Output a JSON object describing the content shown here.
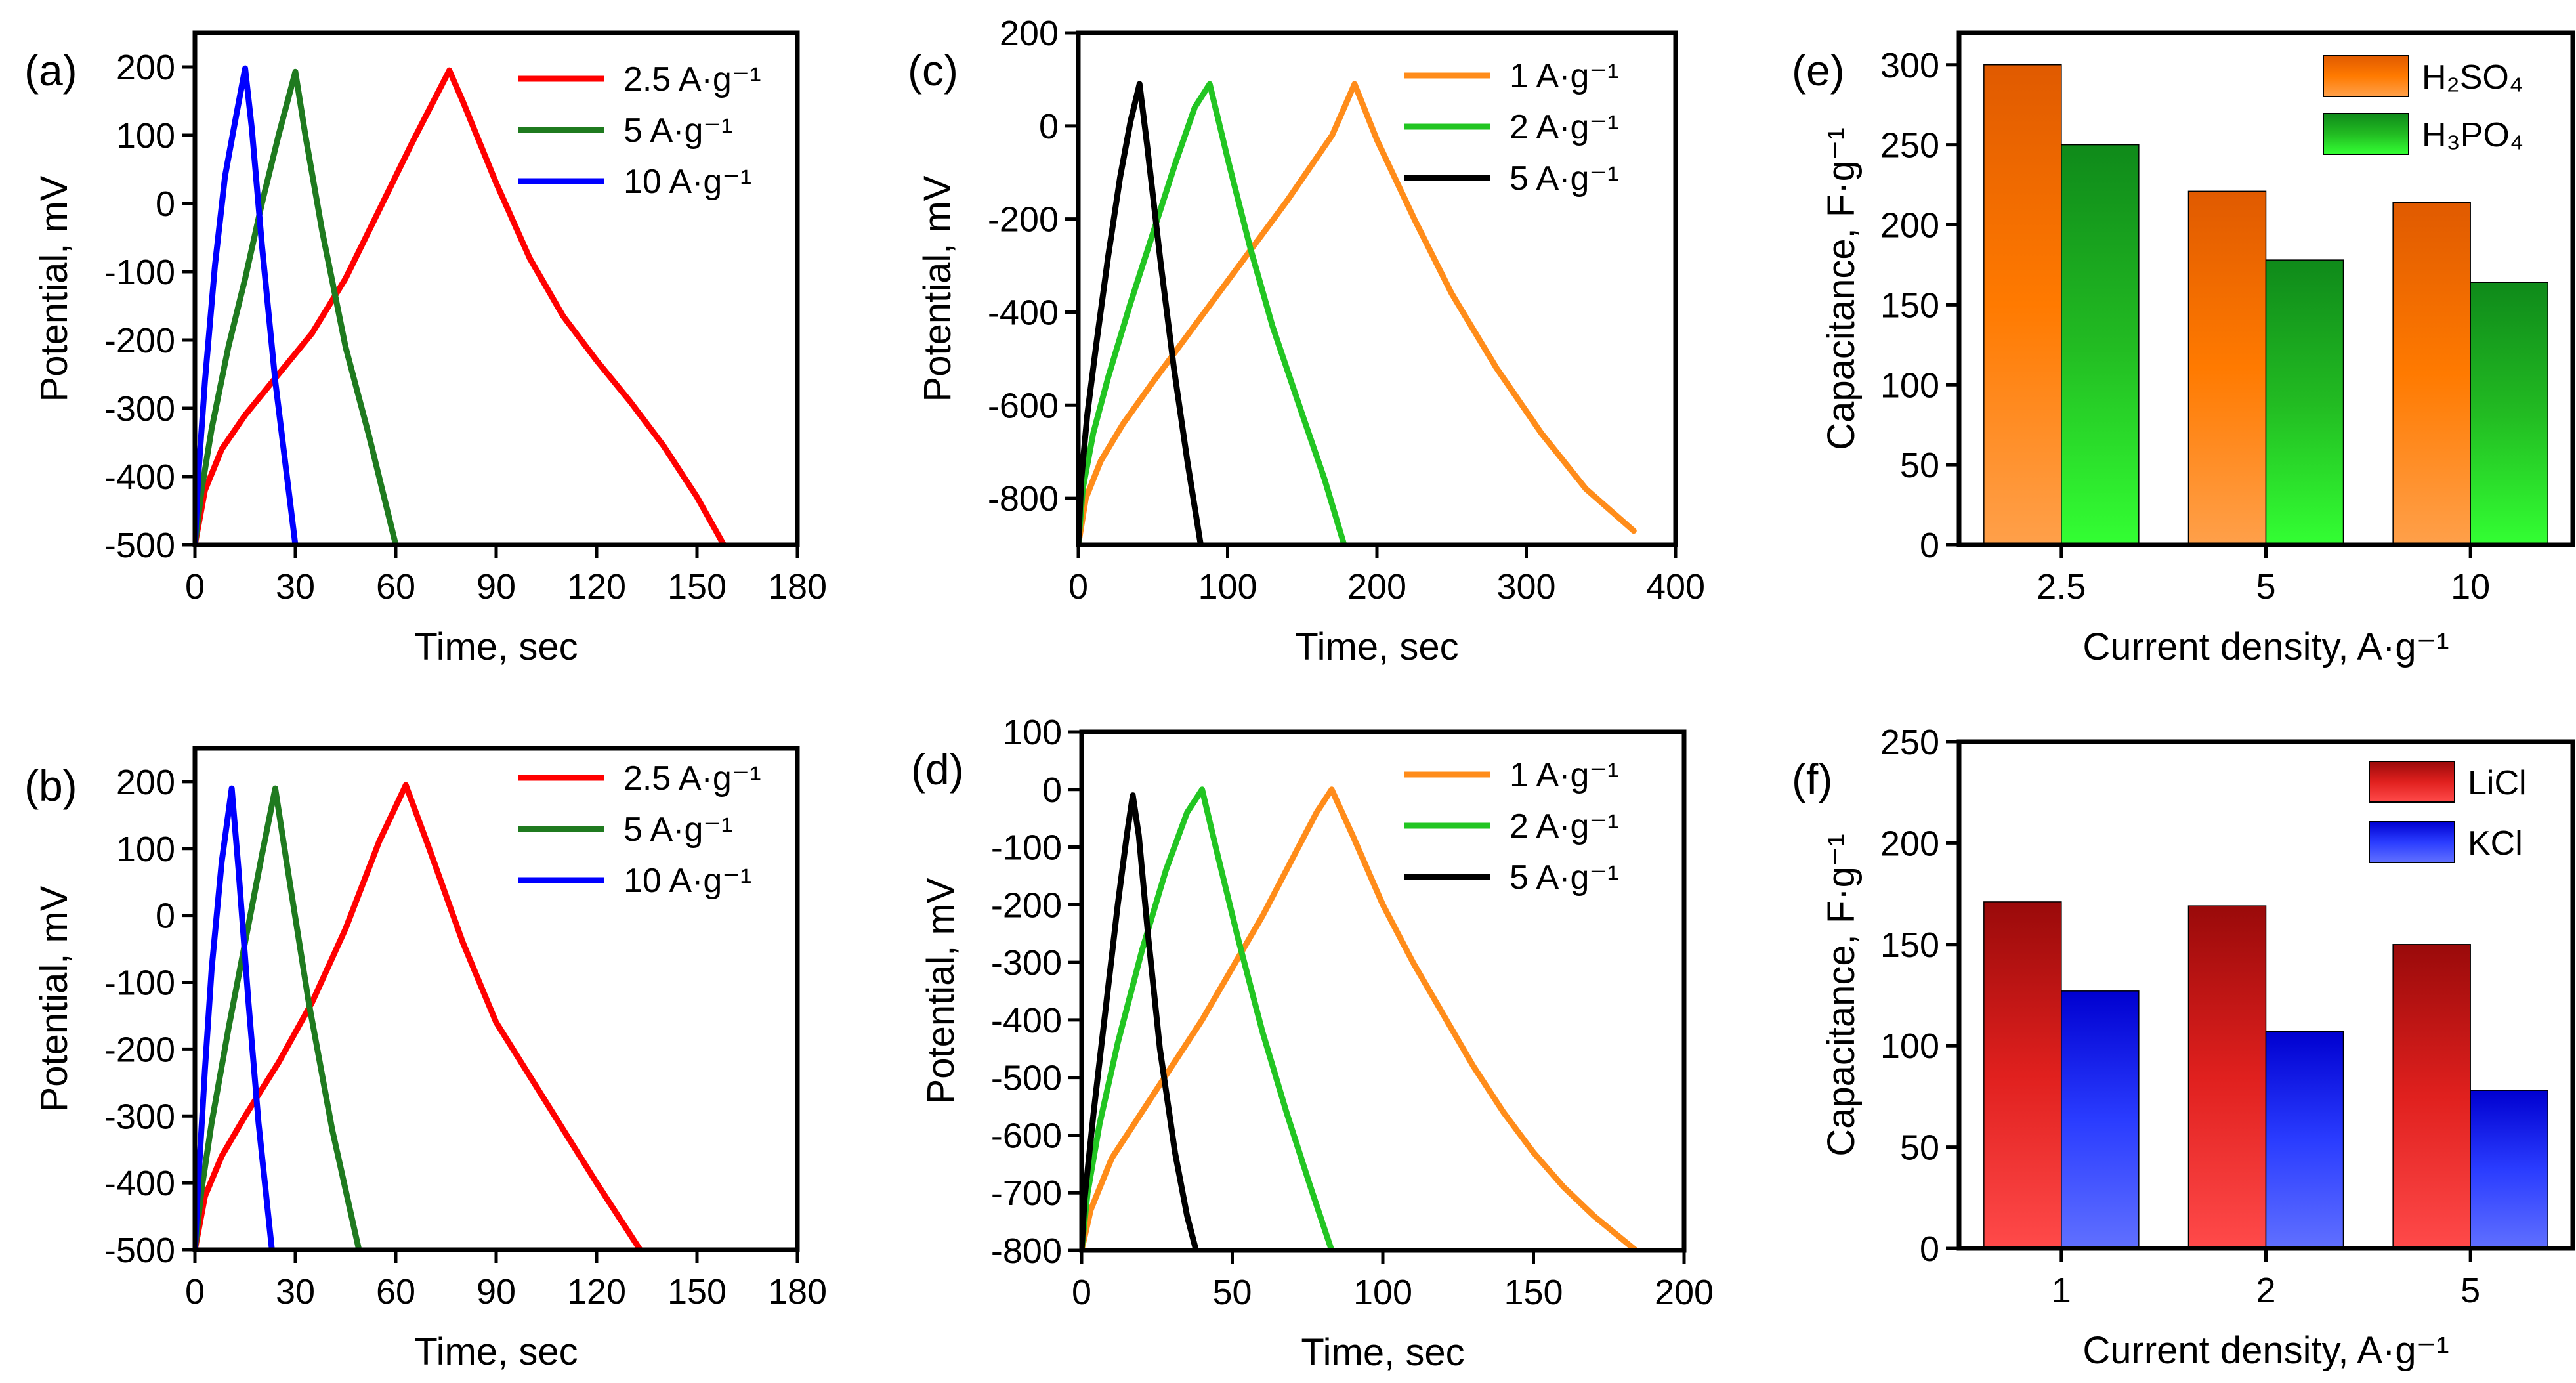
{
  "chart_data": [
    {
      "id": "a",
      "type": "line",
      "panel_label": "(a)",
      "xlabel": "Time, sec",
      "ylabel": "Potential, mV",
      "xlim": [
        0,
        180
      ],
      "ylim": [
        -500,
        250
      ],
      "xticks": [
        "0",
        "30",
        "60",
        "90",
        "120",
        "150",
        "180"
      ],
      "yticks": [
        "-500",
        "-400",
        "-300",
        "-200",
        "-100",
        "0",
        "100",
        "200"
      ],
      "legend_position": "top-right",
      "series": [
        {
          "name": "2.5 A·g⁻¹",
          "color": "#ff0000",
          "x": [
            0,
            3,
            8,
            15,
            25,
            35,
            45,
            55,
            65,
            76,
            80,
            90,
            100,
            110,
            120,
            130,
            140,
            150,
            158
          ],
          "y": [
            -500,
            -420,
            -360,
            -310,
            -250,
            -190,
            -110,
            -10,
            90,
            195,
            150,
            30,
            -80,
            -165,
            -230,
            -290,
            -355,
            -430,
            -500
          ]
        },
        {
          "name": "5 A·g⁻¹",
          "color": "#1f7a1f",
          "x": [
            0,
            2,
            5,
            10,
            15,
            20,
            25,
            30,
            33,
            38,
            45,
            52,
            60
          ],
          "y": [
            -500,
            -420,
            -330,
            -210,
            -110,
            0,
            100,
            193,
            100,
            -40,
            -210,
            -340,
            -500
          ]
        },
        {
          "name": "10 A·g⁻¹",
          "color": "#0000ff",
          "x": [
            0,
            1,
            3,
            6,
            9,
            12,
            15,
            17,
            20,
            24,
            30
          ],
          "y": [
            -500,
            -400,
            -260,
            -90,
            40,
            120,
            198,
            110,
            -60,
            -260,
            -500
          ]
        }
      ]
    },
    {
      "id": "b",
      "type": "line",
      "panel_label": "(b)",
      "xlabel": "Time, sec",
      "ylabel": "Potential, mV",
      "xlim": [
        0,
        180
      ],
      "ylim": [
        -500,
        250
      ],
      "xticks": [
        "0",
        "30",
        "60",
        "90",
        "120",
        "150",
        "180"
      ],
      "yticks": [
        "-500",
        "-400",
        "-300",
        "-200",
        "-100",
        "0",
        "100",
        "200"
      ],
      "legend_position": "top-right",
      "series": [
        {
          "name": "2.5 A·g⁻¹",
          "color": "#ff0000",
          "x": [
            0,
            3,
            8,
            15,
            25,
            35,
            45,
            55,
            63,
            70,
            80,
            90,
            100,
            110,
            120,
            133
          ],
          "y": [
            -500,
            -420,
            -360,
            -300,
            -220,
            -130,
            -20,
            110,
            195,
            100,
            -40,
            -160,
            -240,
            -320,
            -400,
            -500
          ]
        },
        {
          "name": "5 A·g⁻¹",
          "color": "#1f7a1f",
          "x": [
            0,
            2,
            5,
            10,
            15,
            20,
            24,
            28,
            34,
            41,
            49
          ],
          "y": [
            -500,
            -410,
            -310,
            -170,
            -40,
            90,
            190,
            60,
            -130,
            -320,
            -500
          ]
        },
        {
          "name": "10 A·g⁻¹",
          "color": "#0000ff",
          "x": [
            0,
            1,
            3,
            5,
            8,
            11,
            13,
            16,
            19,
            23
          ],
          "y": [
            -500,
            -400,
            -230,
            -80,
            80,
            190,
            70,
            -130,
            -310,
            -500
          ]
        }
      ]
    },
    {
      "id": "c",
      "type": "line",
      "panel_label": "(c)",
      "xlabel": "Time, sec",
      "ylabel": "Potential, mV",
      "xlim": [
        0,
        400
      ],
      "ylim": [
        -900,
        200
      ],
      "xticks": [
        "0",
        "100",
        "200",
        "300",
        "400"
      ],
      "yticks": [
        "-800",
        "-600",
        "-400",
        "-200",
        "0",
        "200"
      ],
      "legend_position": "top-right",
      "series": [
        {
          "name": "1 A·g⁻¹",
          "color": "#ff8c1a",
          "x": [
            0,
            5,
            15,
            30,
            50,
            80,
            110,
            140,
            170,
            185,
            200,
            225,
            250,
            280,
            310,
            340,
            372
          ],
          "y": [
            -900,
            -800,
            -720,
            -640,
            -550,
            -420,
            -290,
            -160,
            -20,
            90,
            -30,
            -200,
            -360,
            -520,
            -660,
            -780,
            -870
          ]
        },
        {
          "name": "2 A·g⁻¹",
          "color": "#22c522",
          "x": [
            0,
            3,
            10,
            20,
            35,
            50,
            65,
            78,
            88,
            100,
            115,
            130,
            150,
            165,
            178
          ],
          "y": [
            -900,
            -780,
            -660,
            -540,
            -380,
            -230,
            -80,
            40,
            90,
            -70,
            -260,
            -430,
            -620,
            -760,
            -900
          ]
        },
        {
          "name": "5 A·g⁻¹",
          "color": "#000000",
          "x": [
            0,
            2,
            6,
            12,
            20,
            28,
            35,
            41,
            46,
            55,
            64,
            73,
            82
          ],
          "y": [
            -900,
            -760,
            -620,
            -470,
            -280,
            -110,
            10,
            90,
            -40,
            -290,
            -520,
            -720,
            -900
          ]
        }
      ]
    },
    {
      "id": "d",
      "type": "line",
      "panel_label": "(d)",
      "xlabel": "Time, sec",
      "ylabel": "Potential, mV",
      "xlim": [
        0,
        200
      ],
      "ylim": [
        -800,
        100
      ],
      "xticks": [
        "0",
        "50",
        "100",
        "150",
        "200"
      ],
      "yticks": [
        "-800",
        "-700",
        "-600",
        "-500",
        "-400",
        "-300",
        "-200",
        "-100",
        "0",
        "100"
      ],
      "legend_position": "top-right",
      "series": [
        {
          "name": "1 A·g⁻¹",
          "color": "#ff8c1a",
          "x": [
            0,
            3,
            10,
            20,
            30,
            40,
            50,
            60,
            70,
            78,
            83,
            90,
            100,
            110,
            120,
            130,
            140,
            150,
            160,
            170,
            184
          ],
          "y": [
            -800,
            -730,
            -640,
            -560,
            -480,
            -400,
            -310,
            -220,
            -120,
            -40,
            0,
            -80,
            -200,
            -300,
            -390,
            -480,
            -560,
            -630,
            -690,
            -740,
            -800
          ]
        },
        {
          "name": "2 A·g⁻¹",
          "color": "#22c522",
          "x": [
            0,
            2,
            6,
            12,
            20,
            28,
            35,
            40,
            45,
            52,
            60,
            68,
            76,
            83
          ],
          "y": [
            -800,
            -700,
            -580,
            -440,
            -280,
            -140,
            -40,
            0,
            -110,
            -260,
            -420,
            -560,
            -690,
            -800
          ]
        },
        {
          "name": "5 A·g⁻¹",
          "color": "#000000",
          "x": [
            0,
            1,
            4,
            8,
            12,
            15,
            17,
            19,
            22,
            26,
            31,
            35,
            38
          ],
          "y": [
            -800,
            -710,
            -560,
            -380,
            -200,
            -80,
            -10,
            -80,
            -250,
            -450,
            -630,
            -740,
            -800
          ]
        }
      ]
    },
    {
      "id": "e",
      "type": "bar",
      "panel_label": "(e)",
      "xlabel": "Current density, A·g⁻¹",
      "ylabel": "Capacitance, F·g⁻¹",
      "categories": [
        "2.5",
        "5",
        "10"
      ],
      "ylim": [
        0,
        320
      ],
      "yticks": [
        "0",
        "50",
        "100",
        "150",
        "200",
        "250",
        "300"
      ],
      "legend_position": "top-right",
      "series": [
        {
          "name": "H₂SO₄",
          "color": "#ff7a00",
          "values": [
            300,
            221,
            214
          ]
        },
        {
          "name": "H₃PO₄",
          "color": "#22cc22",
          "values": [
            250,
            178,
            164
          ]
        }
      ]
    },
    {
      "id": "f",
      "type": "bar",
      "panel_label": "(f)",
      "xlabel": "Current density, A·g⁻¹",
      "ylabel": "Capacitance, F·g⁻¹",
      "categories": [
        "1",
        "2",
        "5"
      ],
      "ylim": [
        0,
        250
      ],
      "yticks": [
        "0",
        "50",
        "100",
        "150",
        "200",
        "250"
      ],
      "legend_position": "top-right",
      "series": [
        {
          "name": "LiCl",
          "color": "#e0201e",
          "values": [
            171,
            169,
            150
          ]
        },
        {
          "name": "KCl",
          "color": "#2a3cff",
          "values": [
            127,
            107,
            78
          ]
        }
      ]
    }
  ]
}
